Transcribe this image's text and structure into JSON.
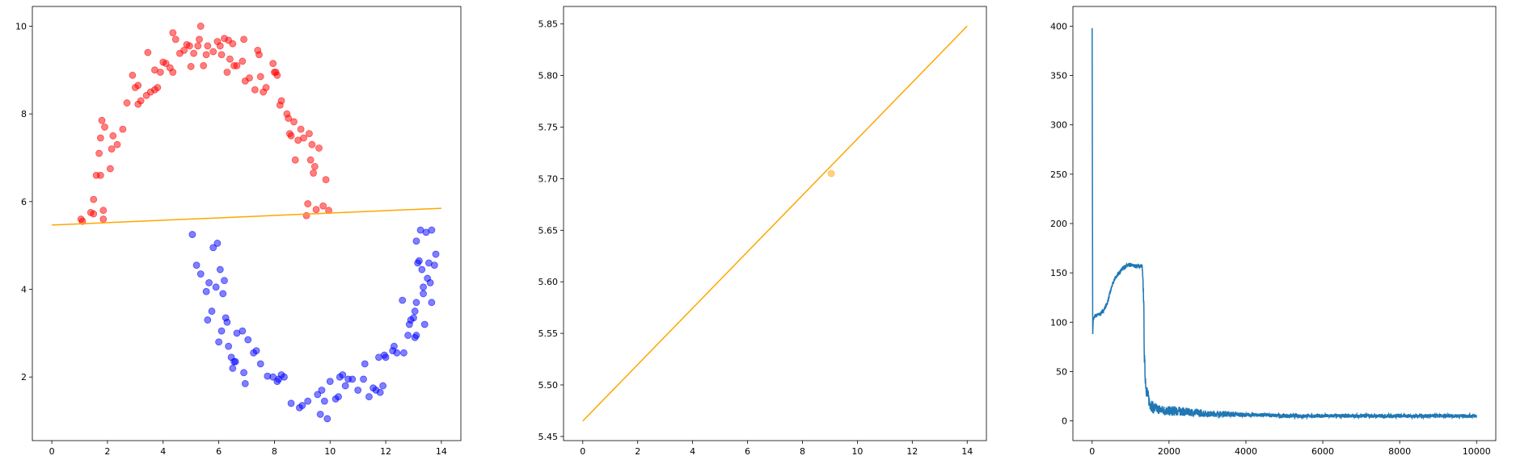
{
  "chart_data": [
    {
      "type": "scatter",
      "title": "",
      "xlabel": "",
      "ylabel": "",
      "xlim": [
        -0.7,
        14.7
      ],
      "ylim": [
        0.55,
        10.45
      ],
      "xticks": [
        0,
        2,
        4,
        6,
        8,
        10,
        12,
        14
      ],
      "yticks": [
        2,
        4,
        6,
        8,
        10
      ],
      "grid": false,
      "colors": {
        "red": "#ff0000",
        "blue": "#0000ff",
        "line": "#ffa500"
      },
      "series": [
        {
          "color": "#ff0000",
          "points": [
            [
              1.05,
              5.6
            ],
            [
              1.1,
              5.55
            ],
            [
              1.4,
              5.75
            ],
            [
              1.5,
              5.72
            ],
            [
              1.5,
              6.05
            ],
            [
              1.6,
              6.6
            ],
            [
              1.75,
              6.6
            ],
            [
              1.85,
              5.8
            ],
            [
              1.85,
              5.6
            ],
            [
              1.7,
              7.1
            ],
            [
              1.75,
              7.45
            ],
            [
              1.8,
              7.85
            ],
            [
              1.9,
              7.7
            ],
            [
              2.1,
              6.75
            ],
            [
              2.15,
              7.2
            ],
            [
              2.2,
              7.5
            ],
            [
              2.35,
              7.3
            ],
            [
              2.55,
              7.65
            ],
            [
              2.7,
              8.25
            ],
            [
              2.9,
              8.88
            ],
            [
              3.0,
              8.6
            ],
            [
              3.1,
              8.65
            ],
            [
              3.1,
              8.22
            ],
            [
              3.2,
              8.3
            ],
            [
              3.4,
              8.42
            ],
            [
              3.45,
              9.4
            ],
            [
              3.55,
              8.5
            ],
            [
              3.7,
              8.55
            ],
            [
              3.8,
              8.6
            ],
            [
              3.7,
              9.0
            ],
            [
              3.9,
              8.95
            ],
            [
              4.0,
              9.18
            ],
            [
              4.1,
              9.15
            ],
            [
              4.25,
              9.05
            ],
            [
              4.35,
              8.95
            ],
            [
              4.35,
              9.85
            ],
            [
              4.45,
              9.7
            ],
            [
              4.6,
              9.38
            ],
            [
              4.75,
              9.45
            ],
            [
              4.85,
              9.58
            ],
            [
              4.95,
              9.55
            ],
            [
              5.0,
              9.08
            ],
            [
              5.1,
              9.38
            ],
            [
              5.25,
              9.55
            ],
            [
              5.3,
              9.7
            ],
            [
              5.35,
              10.0
            ],
            [
              5.45,
              9.1
            ],
            [
              5.55,
              9.35
            ],
            [
              5.6,
              9.55
            ],
            [
              5.8,
              9.42
            ],
            [
              5.95,
              9.65
            ],
            [
              6.05,
              9.55
            ],
            [
              6.1,
              9.35
            ],
            [
              6.2,
              9.72
            ],
            [
              6.3,
              8.95
            ],
            [
              6.35,
              9.68
            ],
            [
              6.4,
              9.25
            ],
            [
              6.5,
              9.6
            ],
            [
              6.55,
              9.1
            ],
            [
              6.65,
              9.1
            ],
            [
              6.85,
              9.2
            ],
            [
              6.9,
              9.7
            ],
            [
              6.95,
              8.75
            ],
            [
              7.1,
              8.82
            ],
            [
              7.3,
              8.55
            ],
            [
              7.4,
              9.45
            ],
            [
              7.45,
              9.35
            ],
            [
              7.5,
              8.85
            ],
            [
              7.6,
              8.5
            ],
            [
              7.7,
              8.6
            ],
            [
              7.95,
              9.15
            ],
            [
              8.0,
              8.95
            ],
            [
              8.05,
              8.95
            ],
            [
              8.1,
              8.88
            ],
            [
              8.2,
              8.2
            ],
            [
              8.25,
              8.3
            ],
            [
              8.45,
              8.0
            ],
            [
              8.5,
              7.9
            ],
            [
              8.55,
              7.55
            ],
            [
              8.6,
              7.5
            ],
            [
              8.7,
              7.82
            ],
            [
              8.75,
              6.95
            ],
            [
              8.85,
              7.4
            ],
            [
              8.95,
              7.65
            ],
            [
              9.05,
              7.45
            ],
            [
              9.15,
              5.68
            ],
            [
              9.2,
              5.95
            ],
            [
              9.25,
              7.55
            ],
            [
              9.3,
              6.95
            ],
            [
              9.35,
              7.3
            ],
            [
              9.4,
              6.65
            ],
            [
              9.45,
              6.8
            ],
            [
              9.5,
              5.82
            ],
            [
              9.6,
              7.22
            ],
            [
              9.75,
              5.9
            ],
            [
              9.85,
              6.5
            ],
            [
              9.95,
              5.8
            ]
          ]
        },
        {
          "color": "#0000ff",
          "points": [
            [
              5.05,
              5.25
            ],
            [
              5.2,
              4.55
            ],
            [
              5.35,
              4.35
            ],
            [
              5.55,
              3.95
            ],
            [
              5.6,
              3.3
            ],
            [
              5.65,
              4.15
            ],
            [
              5.75,
              3.5
            ],
            [
              5.8,
              4.95
            ],
            [
              5.9,
              4.05
            ],
            [
              5.95,
              5.05
            ],
            [
              6.0,
              2.8
            ],
            [
              6.1,
              3.05
            ],
            [
              6.05,
              4.45
            ],
            [
              6.15,
              3.9
            ],
            [
              6.2,
              4.2
            ],
            [
              6.25,
              3.35
            ],
            [
              6.3,
              3.25
            ],
            [
              6.35,
              2.7
            ],
            [
              6.45,
              2.45
            ],
            [
              6.5,
              2.2
            ],
            [
              6.55,
              2.35
            ],
            [
              6.6,
              2.35
            ],
            [
              6.65,
              3.0
            ],
            [
              6.85,
              3.05
            ],
            [
              6.9,
              2.1
            ],
            [
              6.95,
              1.85
            ],
            [
              7.05,
              2.85
            ],
            [
              7.25,
              2.55
            ],
            [
              7.35,
              2.6
            ],
            [
              7.5,
              2.3
            ],
            [
              7.75,
              2.02
            ],
            [
              7.95,
              2.0
            ],
            [
              8.1,
              1.9
            ],
            [
              8.15,
              1.95
            ],
            [
              8.25,
              2.05
            ],
            [
              8.35,
              2.0
            ],
            [
              8.6,
              1.4
            ],
            [
              8.9,
              1.3
            ],
            [
              9.0,
              1.35
            ],
            [
              9.2,
              1.45
            ],
            [
              9.55,
              1.6
            ],
            [
              9.65,
              1.15
            ],
            [
              9.7,
              1.7
            ],
            [
              9.8,
              1.45
            ],
            [
              9.9,
              1.05
            ],
            [
              10.0,
              1.9
            ],
            [
              10.2,
              1.5
            ],
            [
              10.3,
              1.55
            ],
            [
              10.35,
              2.0
            ],
            [
              10.45,
              2.05
            ],
            [
              10.55,
              1.8
            ],
            [
              10.65,
              1.95
            ],
            [
              10.8,
              1.95
            ],
            [
              11.0,
              1.7
            ],
            [
              11.2,
              1.95
            ],
            [
              11.25,
              2.3
            ],
            [
              11.4,
              1.55
            ],
            [
              11.55,
              1.75
            ],
            [
              11.65,
              1.7
            ],
            [
              11.8,
              1.65
            ],
            [
              11.75,
              2.45
            ],
            [
              11.9,
              1.8
            ],
            [
              11.95,
              2.5
            ],
            [
              12.0,
              2.45
            ],
            [
              12.25,
              2.6
            ],
            [
              12.3,
              2.7
            ],
            [
              12.4,
              2.55
            ],
            [
              12.65,
              2.55
            ],
            [
              12.6,
              3.75
            ],
            [
              12.8,
              2.95
            ],
            [
              12.85,
              3.2
            ],
            [
              12.9,
              3.3
            ],
            [
              13.0,
              3.35
            ],
            [
              13.05,
              3.5
            ],
            [
              13.05,
              2.9
            ],
            [
              13.1,
              2.95
            ],
            [
              13.1,
              3.7
            ],
            [
              13.15,
              4.6
            ],
            [
              13.2,
              4.65
            ],
            [
              13.25,
              5.35
            ],
            [
              13.3,
              4.45
            ],
            [
              13.35,
              3.9
            ],
            [
              13.35,
              4.05
            ],
            [
              13.4,
              3.2
            ],
            [
              13.45,
              5.3
            ],
            [
              13.5,
              4.25
            ],
            [
              13.55,
              4.6
            ],
            [
              13.6,
              4.15
            ],
            [
              13.65,
              5.35
            ],
            [
              13.65,
              3.7
            ],
            [
              13.75,
              4.55
            ],
            [
              13.8,
              4.8
            ],
            [
              13.1,
              5.1
            ]
          ]
        },
        {
          "type": "line",
          "color": "#ffa500",
          "x": [
            0,
            14
          ],
          "y": [
            5.465,
            5.848
          ]
        }
      ]
    },
    {
      "type": "line",
      "title": "",
      "xlabel": "",
      "ylabel": "",
      "xlim": [
        -0.7,
        14.7
      ],
      "ylim": [
        5.446,
        5.867
      ],
      "xticks": [
        0,
        2,
        4,
        6,
        8,
        10,
        12,
        14
      ],
      "yticks": [
        5.45,
        5.5,
        5.55,
        5.6,
        5.65,
        5.7,
        5.75,
        5.8,
        5.85
      ],
      "grid": false,
      "series": [
        {
          "color": "#ffa500",
          "x": [
            0,
            14
          ],
          "y": [
            5.465,
            5.848
          ]
        },
        {
          "type": "scatter",
          "color": "#ffa500",
          "points": [
            [
              9.05,
              5.705
            ]
          ]
        }
      ]
    },
    {
      "type": "line",
      "title": "",
      "xlabel": "",
      "ylabel": "",
      "xlim": [
        -500,
        10500
      ],
      "ylim": [
        -20,
        420
      ],
      "xticks": [
        0,
        2000,
        4000,
        6000,
        8000,
        10000
      ],
      "yticks": [
        0,
        50,
        100,
        150,
        200,
        250,
        300,
        350,
        400
      ],
      "grid": false,
      "series": [
        {
          "color": "#1f77b4",
          "x": [
            0,
            15,
            30,
            40,
            60,
            100,
            200,
            300,
            400,
            500,
            600,
            700,
            800,
            900,
            1000,
            1100,
            1200,
            1300,
            1340,
            1360,
            1400,
            1450,
            1500,
            1550,
            1600,
            1700,
            1800,
            2000,
            2200,
            2500,
            2800,
            3000,
            3200,
            3500,
            4000,
            4500,
            5000,
            5500,
            6000,
            6500,
            7000,
            7500,
            8000,
            8500,
            9000,
            9500,
            10000
          ],
          "y": [
            398,
            88,
            105,
            104,
            106,
            107,
            108,
            112,
            120,
            135,
            145,
            150,
            155,
            157,
            158,
            157,
            157,
            157,
            125,
            60,
            35,
            25,
            18,
            15,
            13,
            12,
            11,
            10,
            10,
            9,
            8,
            7,
            7,
            7,
            6,
            6,
            5,
            5,
            5,
            5,
            5,
            5,
            5,
            5,
            5,
            5,
            5
          ],
          "noise": [
            0,
            0,
            0,
            0,
            2,
            2,
            2,
            2,
            2,
            2,
            2,
            2,
            2,
            2,
            2,
            2,
            2,
            2,
            8,
            10,
            8,
            7,
            6,
            6,
            6,
            5,
            5,
            5,
            5,
            4,
            4,
            3,
            3,
            3,
            2,
            2,
            2,
            2,
            2,
            2,
            2,
            2,
            2,
            2,
            2,
            2,
            2
          ]
        }
      ]
    }
  ]
}
